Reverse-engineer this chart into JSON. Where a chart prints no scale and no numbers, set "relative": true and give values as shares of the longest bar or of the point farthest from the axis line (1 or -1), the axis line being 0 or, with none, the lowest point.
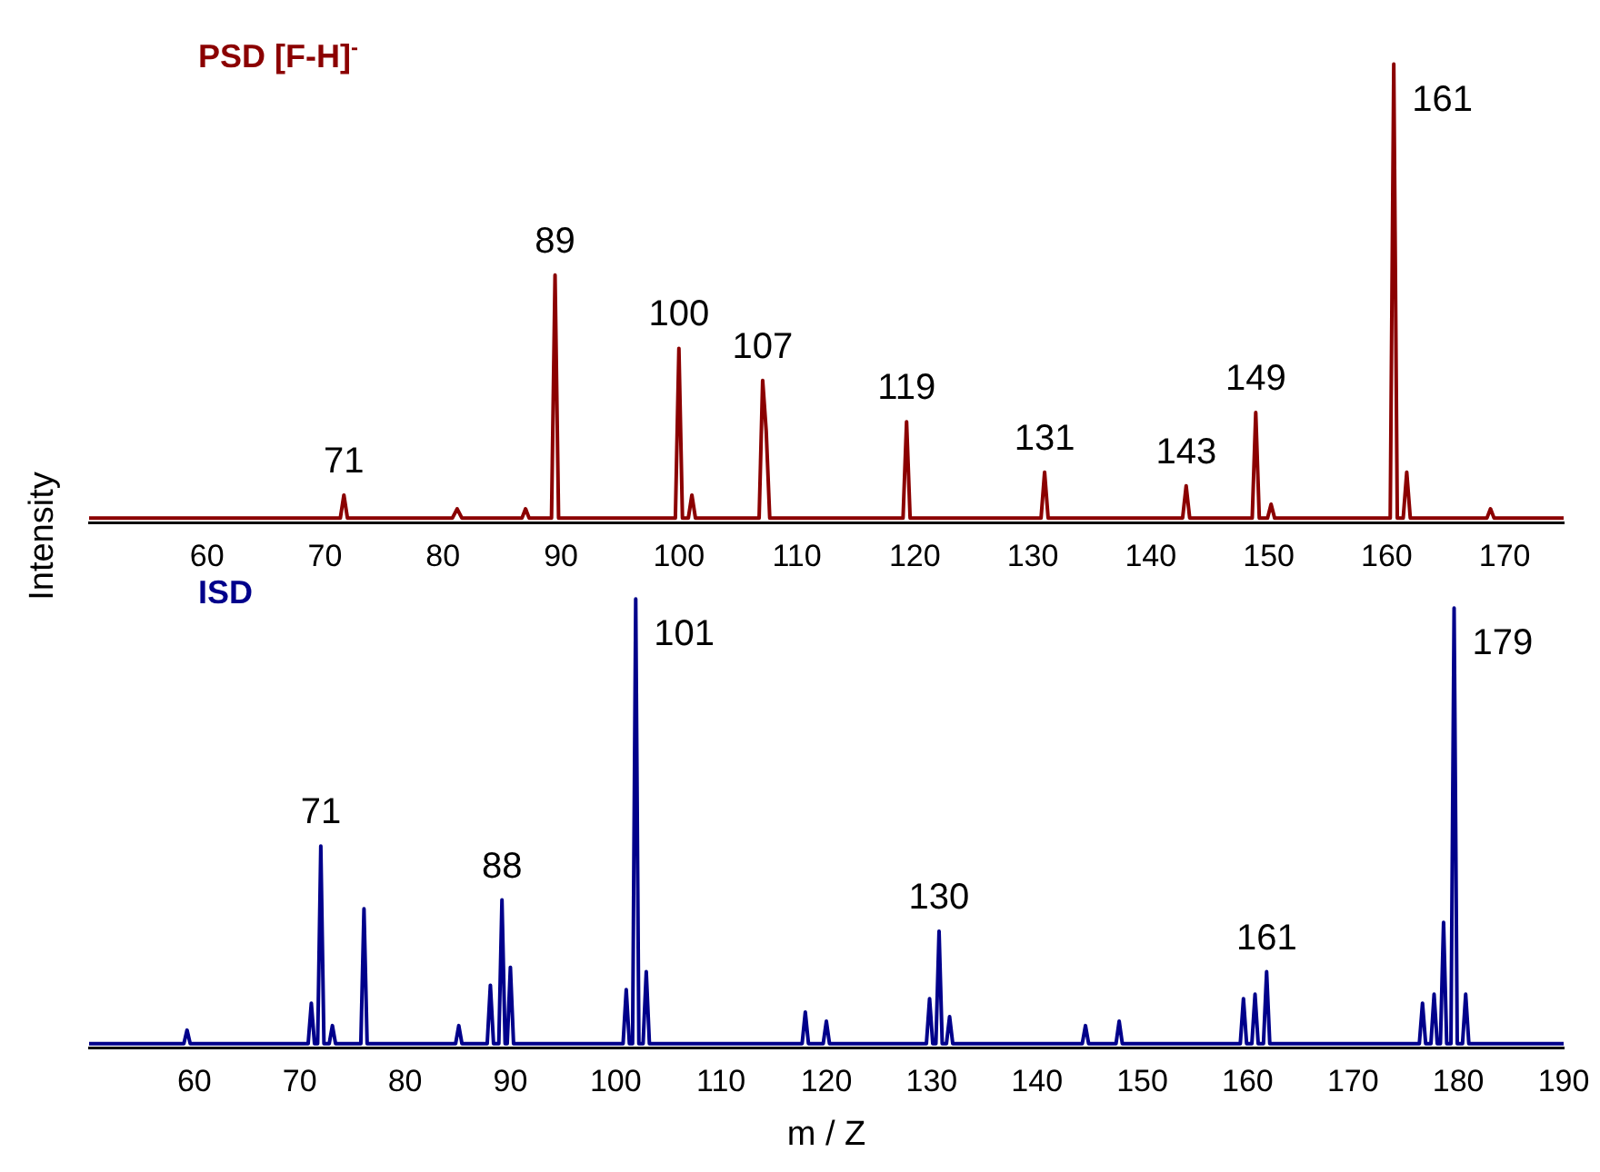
{
  "chart_data": [
    {
      "type": "line",
      "relative": true,
      "ylabel": "Intensity",
      "xlim": [
        50,
        175
      ],
      "xticks": [
        60,
        70,
        80,
        90,
        100,
        110,
        120,
        130,
        140,
        150,
        160,
        170
      ],
      "marker": "none",
      "legend": false,
      "grid": false,
      "series": [
        {
          "name": "PSD [F-H]$^{-}$",
          "color": "#8b0000",
          "x": [
            50,
            71.3,
            71.6,
            71.9,
            80.8,
            81.2,
            81.6,
            86.7,
            87,
            87.3,
            89.2,
            89.5,
            89.8,
            99.7,
            100,
            100.3,
            100.8,
            101.1,
            101.4,
            106.8,
            107.1,
            107.4,
            107.7,
            119,
            119.3,
            119.6,
            130.7,
            131,
            131.3,
            142.7,
            143,
            143.3,
            148.6,
            148.9,
            149.2,
            149.9,
            150.2,
            150.5,
            160.3,
            160.6,
            160.9,
            161.4,
            161.7,
            162,
            168.5,
            168.8,
            169.1,
            175
          ],
          "values": [
            0.01,
            0.01,
            0.06,
            0.01,
            0.01,
            0.03,
            0.01,
            0.01,
            0.03,
            0.01,
            0.01,
            0.54,
            0.01,
            0.01,
            0.38,
            0.01,
            0.01,
            0.06,
            0.01,
            0.01,
            0.31,
            0.2,
            0.01,
            0.01,
            0.22,
            0.01,
            0.01,
            0.11,
            0.01,
            0.01,
            0.08,
            0.01,
            0.01,
            0.24,
            0.01,
            0.01,
            0.04,
            0.01,
            0.01,
            1,
            0.01,
            0.01,
            0.11,
            0.01,
            0.01,
            0.03,
            0.01,
            0.01
          ]
        }
      ],
      "annotations": [
        {
          "text": "71",
          "x": 71.6,
          "y": 0.06
        },
        {
          "text": "89",
          "x": 89.5,
          "y": 0.54
        },
        {
          "text": "100",
          "x": 100,
          "y": 0.38
        },
        {
          "text": "107",
          "x": 107.1,
          "y": 0.31
        },
        {
          "text": "119",
          "x": 119.3,
          "y": 0.22
        },
        {
          "text": "131",
          "x": 131,
          "y": 0.11
        },
        {
          "text": "143",
          "x": 143,
          "y": 0.08
        },
        {
          "text": "149",
          "x": 148.9,
          "y": 0.24
        },
        {
          "text": "161",
          "x": 160.6,
          "y": 1
        }
      ]
    },
    {
      "type": "line",
      "relative": true,
      "xlabel": "m / Z",
      "xlim": [
        50,
        190
      ],
      "xticks": [
        60,
        70,
        80,
        90,
        100,
        110,
        120,
        130,
        140,
        150,
        160,
        170,
        180,
        190
      ],
      "marker": "none",
      "legend": false,
      "grid": false,
      "series": [
        {
          "name": "ISD",
          "color": "#00008b",
          "x": [
            50,
            59,
            59.3,
            59.6,
            70.8,
            71.1,
            71.4,
            71.7,
            72,
            72.3,
            72.8,
            73.1,
            73.4,
            75.8,
            76.1,
            76.4,
            84.8,
            85.1,
            85.4,
            87.8,
            88.1,
            88.4,
            88.9,
            89.2,
            89.5,
            89.7,
            90,
            90.3,
            100.7,
            101,
            101.3,
            101.6,
            101.9,
            102.2,
            102.6,
            102.9,
            103.2,
            117.7,
            118,
            118.3,
            119.7,
            120,
            120.3,
            129.5,
            129.8,
            130.1,
            130.4,
            130.7,
            131,
            131.4,
            131.7,
            132,
            144.3,
            144.6,
            144.9,
            147.5,
            147.8,
            148.1,
            159.3,
            159.6,
            159.9,
            160.4,
            160.7,
            161,
            161.5,
            161.8,
            162.1,
            176.3,
            176.6,
            176.9,
            177.4,
            177.7,
            178,
            178.3,
            178.6,
            178.9,
            179.3,
            179.6,
            179.9,
            180.4,
            180.7,
            181,
            190
          ],
          "values": [
            0.01,
            0.01,
            0.04,
            0.01,
            0.01,
            0.1,
            0.01,
            0.01,
            0.45,
            0.01,
            0.01,
            0.05,
            0.01,
            0.01,
            0.31,
            0.01,
            0.01,
            0.05,
            0.01,
            0.01,
            0.14,
            0.01,
            0.01,
            0.33,
            0.01,
            0.01,
            0.18,
            0.01,
            0.01,
            0.13,
            0.01,
            0.01,
            1,
            0.01,
            0.01,
            0.17,
            0.01,
            0.01,
            0.08,
            0.01,
            0.01,
            0.06,
            0.01,
            0.01,
            0.11,
            0.01,
            0.01,
            0.26,
            0.01,
            0.01,
            0.07,
            0.01,
            0.01,
            0.05,
            0.01,
            0.01,
            0.06,
            0.01,
            0.01,
            0.11,
            0.01,
            0.01,
            0.12,
            0.01,
            0.01,
            0.17,
            0.01,
            0.01,
            0.1,
            0.01,
            0.01,
            0.12,
            0.01,
            0.01,
            0.28,
            0.01,
            0.01,
            0.98,
            0.01,
            0.01,
            0.12,
            0.01,
            0.01
          ]
        }
      ],
      "annotations": [
        {
          "text": "71",
          "x": 72,
          "y": 0.45
        },
        {
          "text": "88",
          "x": 89.2,
          "y": 0.33
        },
        {
          "text": "101",
          "x": 101.9,
          "y": 1
        },
        {
          "text": "130",
          "x": 130.7,
          "y": 0.26
        },
        {
          "text": "161",
          "x": 161.8,
          "y": 0.17
        },
        {
          "text": "179",
          "x": 179.6,
          "y": 0.98
        }
      ]
    }
  ]
}
